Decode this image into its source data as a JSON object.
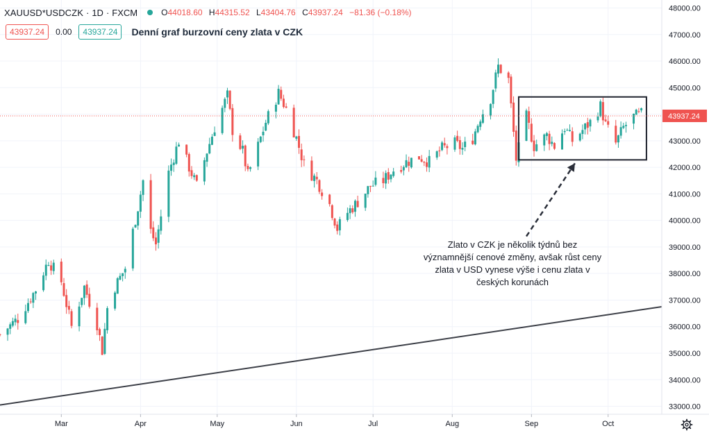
{
  "header": {
    "symbol": "XAUUSD*USDCZK",
    "interval": "1D",
    "exchange": "FXCM",
    "open_label": "O",
    "open": "44018.60",
    "high_label": "H",
    "high": "44315.52",
    "low_label": "L",
    "low": "43404.76",
    "close_label": "C",
    "close": "43937.24",
    "change": "−81.36 (−0.18%)",
    "bid": "43937.24",
    "spread": "0.00",
    "ask": "43937.24",
    "chart_title": "Denní graf burzovní ceny zlata v CZK"
  },
  "annotation": {
    "lines": [
      "Zlato v CZK je několik týdnů bez",
      "významnější cenové změny, avšak růst ceny",
      "zlata v USD vynese výše i cenu zlata v",
      "českých korunách"
    ]
  },
  "colors": {
    "up": "#26a69a",
    "down": "#ef5350",
    "line": "#3c3f47",
    "price_tag": "#ef5350"
  },
  "icons": {
    "settings": "gear-icon",
    "status": "market-status-dot"
  },
  "chart_data": {
    "type": "candlestick",
    "title": "Denní graf burzovní ceny zlata v CZK",
    "xlabel": "",
    "ylabel": "",
    "ylim": [
      32700,
      48300
    ],
    "y_ticks": [
      33000,
      34000,
      35000,
      36000,
      37000,
      38000,
      39000,
      40000,
      41000,
      42000,
      43000,
      44000,
      45000,
      46000,
      47000,
      48000
    ],
    "y_tick_labels": [
      "33000.00",
      "34000.00",
      "35000.00",
      "36000.00",
      "37000.00",
      "38000.00",
      "39000.00",
      "40000.00",
      "41000.00",
      "42000.00",
      "43000.00",
      "44000.00",
      "45000.00",
      "46000.00",
      "47000.00",
      "48000.00"
    ],
    "x_range": [
      "2021-02-05",
      "2021-10-22"
    ],
    "x_labels": [
      {
        "date": "2021-03-01",
        "label": "Mar"
      },
      {
        "date": "2021-04-01",
        "label": "Apr"
      },
      {
        "date": "2021-05-01",
        "label": "May"
      },
      {
        "date": "2021-06-01",
        "label": "Jun"
      },
      {
        "date": "2021-07-01",
        "label": "Jul"
      },
      {
        "date": "2021-08-01",
        "label": "Aug"
      },
      {
        "date": "2021-09-01",
        "label": "Sep"
      },
      {
        "date": "2021-10-01",
        "label": "Oct"
      }
    ],
    "current_price": 43937.24,
    "current_price_label": "43937.24",
    "close_anchors": [
      [
        "2021-02-05",
        35700
      ],
      [
        "2021-02-12",
        36300
      ],
      [
        "2021-02-19",
        37400
      ],
      [
        "2021-02-24",
        38500
      ],
      [
        "2021-03-01",
        37700
      ],
      [
        "2021-03-05",
        36000
      ],
      [
        "2021-03-10",
        37500
      ],
      [
        "2021-03-15",
        36100
      ],
      [
        "2021-03-17",
        35100
      ],
      [
        "2021-03-19",
        36700
      ],
      [
        "2021-03-22",
        37500
      ],
      [
        "2021-03-26",
        38200
      ],
      [
        "2021-03-31",
        40500
      ],
      [
        "2021-04-02",
        41500
      ],
      [
        "2021-04-05",
        39600
      ],
      [
        "2021-04-07",
        39100
      ],
      [
        "2021-04-12",
        41800
      ],
      [
        "2021-04-16",
        43000
      ],
      [
        "2021-04-20",
        42000
      ],
      [
        "2021-04-23",
        41300
      ],
      [
        "2021-04-27",
        42600
      ],
      [
        "2021-04-30",
        43500
      ],
      [
        "2021-05-05",
        44700
      ],
      [
        "2021-05-07",
        43400
      ],
      [
        "2021-05-11",
        42600
      ],
      [
        "2021-05-13",
        41700
      ],
      [
        "2021-05-17",
        42800
      ],
      [
        "2021-05-20",
        43700
      ],
      [
        "2021-05-25",
        44800
      ],
      [
        "2021-05-28",
        44200
      ],
      [
        "2021-06-01",
        43100
      ],
      [
        "2021-06-04",
        42100
      ],
      [
        "2021-06-09",
        41500
      ],
      [
        "2021-06-14",
        40600
      ],
      [
        "2021-06-17",
        39700
      ],
      [
        "2021-06-21",
        40300
      ],
      [
        "2021-06-25",
        40700
      ],
      [
        "2021-06-30",
        41300
      ],
      [
        "2021-07-05",
        41500
      ],
      [
        "2021-07-09",
        41900
      ],
      [
        "2021-07-14",
        42200
      ],
      [
        "2021-07-19",
        42400
      ],
      [
        "2021-07-23",
        42200
      ],
      [
        "2021-07-28",
        42700
      ],
      [
        "2021-08-02",
        42900
      ],
      [
        "2021-08-05",
        42700
      ],
      [
        "2021-08-09",
        43100
      ],
      [
        "2021-08-12",
        43900
      ],
      [
        "2021-08-16",
        44600
      ],
      [
        "2021-08-19",
        45800
      ],
      [
        "2021-08-23",
        45300
      ],
      [
        "2021-08-26",
        42300
      ],
      [
        "2021-08-30",
        43900
      ],
      [
        "2021-09-02",
        42800
      ],
      [
        "2021-09-07",
        43200
      ],
      [
        "2021-09-10",
        42800
      ],
      [
        "2021-09-14",
        43500
      ],
      [
        "2021-09-17",
        43000
      ],
      [
        "2021-09-21",
        43400
      ],
      [
        "2021-09-24",
        43700
      ],
      [
        "2021-09-28",
        44300
      ],
      [
        "2021-09-30",
        43600
      ],
      [
        "2021-10-04",
        42900
      ],
      [
        "2021-10-07",
        43500
      ],
      [
        "2021-10-11",
        43900
      ],
      [
        "2021-10-14",
        44000
      ]
    ],
    "trendline": {
      "from": [
        "2021-02-05",
        33050
      ],
      "to": [
        "2021-10-22",
        36750
      ]
    },
    "highlight_box": {
      "from": [
        "2021-08-27",
        44650
      ],
      "to": [
        "2021-10-16",
        42280
      ]
    },
    "arrow": {
      "from": [
        "2021-08-30",
        39400
      ],
      "to": [
        "2021-09-18",
        42150
      ]
    }
  }
}
